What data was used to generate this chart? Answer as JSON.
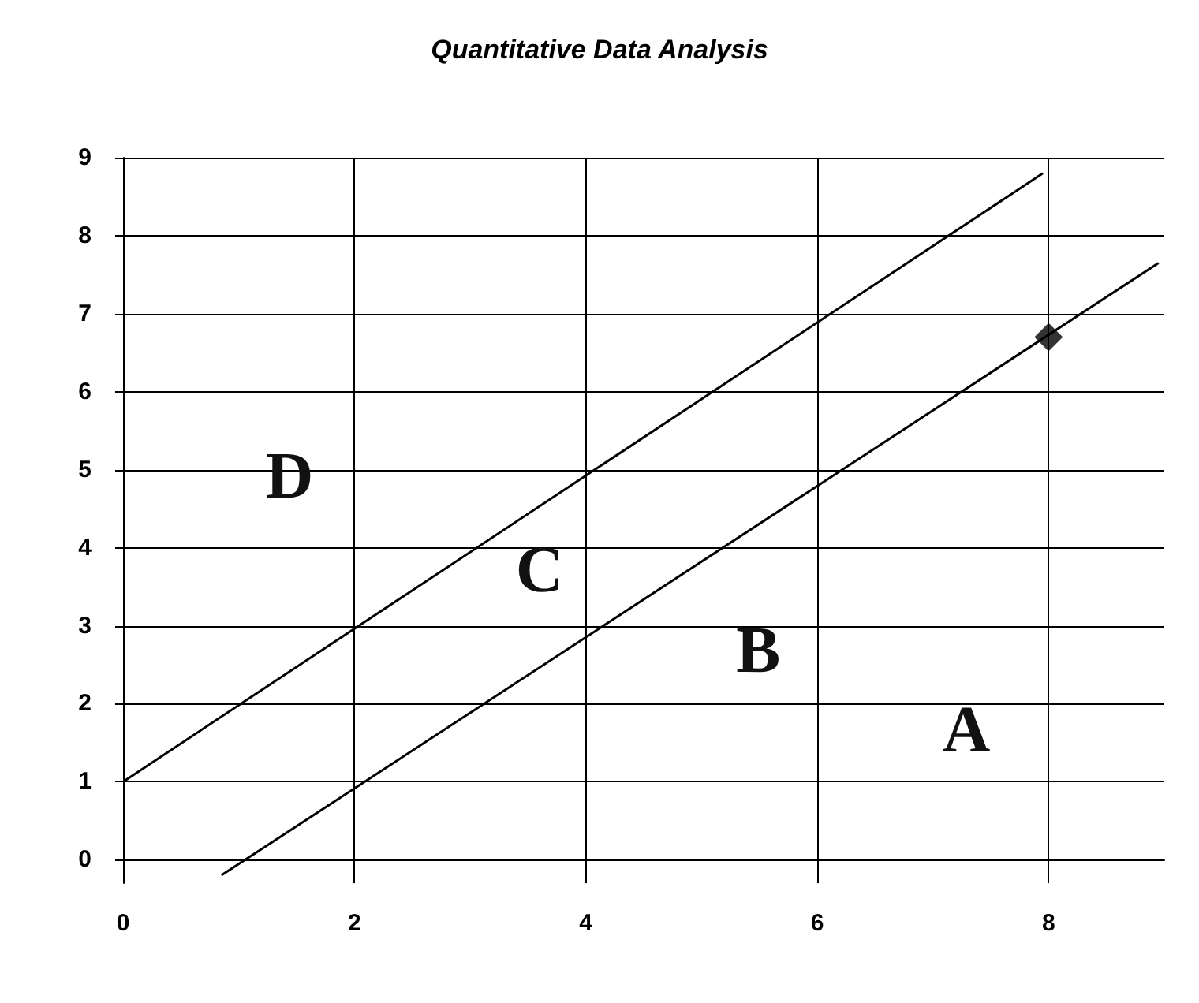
{
  "chart_data": {
    "type": "line",
    "title": "Quantitative Data Analysis",
    "series": [
      {
        "type": "line",
        "color": "#000000",
        "x": [
          0,
          7.95
        ],
        "values": [
          1,
          8.8
        ]
      },
      {
        "type": "line",
        "color": "#000000",
        "x": [
          0.85,
          8.95
        ],
        "values": [
          -0.2,
          7.65
        ]
      },
      {
        "type": "scatter",
        "color": "#000000",
        "marker": "diamond",
        "x": [
          8
        ],
        "values": [
          6.7
        ]
      }
    ],
    "annotations": [
      "D",
      "C",
      "B",
      "A"
    ],
    "xlim": [
      0,
      9
    ],
    "xticks": [
      0,
      2,
      4,
      6,
      8
    ],
    "ylim": [
      -0.3,
      9
    ],
    "yticks": [
      0,
      1,
      2,
      3,
      4,
      5,
      6,
      7,
      8,
      9
    ],
    "grid": true,
    "marker": "none",
    "line_style": "solid"
  }
}
